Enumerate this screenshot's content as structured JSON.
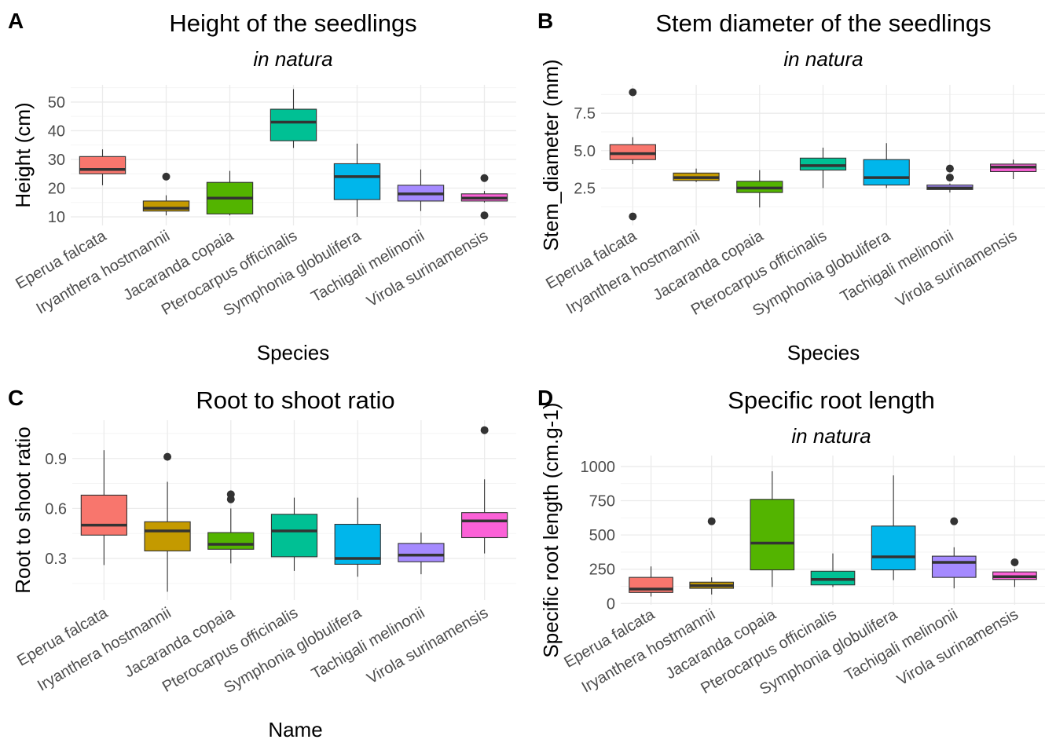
{
  "chart_data": [
    {
      "tag": "A",
      "type": "boxplot",
      "title": "Height of the seedlings",
      "subtitle": "in natura",
      "xlabel": "Species",
      "ylabel": "Height (cm)",
      "ylim": [
        7,
        56
      ],
      "yticks": [
        10,
        20,
        30,
        40,
        50
      ],
      "yticklabels": [
        "10",
        "20",
        "30",
        "40",
        "50"
      ],
      "categories": [
        "Eperua falcata",
        "Iryanthera hostmannii",
        "Jacaranda copaia",
        "Pterocarpus officinalis",
        "Symphonia globulifera",
        "Tachigali melinonii",
        "Virola surinamensis"
      ],
      "boxes": [
        {
          "min": 21,
          "q1": 25,
          "median": 26.5,
          "q3": 31,
          "max": 33.5,
          "outliers": []
        },
        {
          "min": 10.5,
          "q1": 12,
          "median": 13,
          "q3": 15.5,
          "max": 17.5,
          "outliers": [
            24
          ]
        },
        {
          "min": 10.5,
          "q1": 11,
          "median": 16.5,
          "q3": 22,
          "max": 26,
          "outliers": []
        },
        {
          "min": 34,
          "q1": 36.5,
          "median": 43,
          "q3": 47.5,
          "max": 54.5,
          "outliers": []
        },
        {
          "min": 10,
          "q1": 16,
          "median": 24,
          "q3": 28.5,
          "max": 35.5,
          "outliers": []
        },
        {
          "min": 12,
          "q1": 15.5,
          "median": 18,
          "q3": 21,
          "max": 26.5,
          "outliers": []
        },
        {
          "min": 15,
          "q1": 15.5,
          "median": 16.5,
          "q3": 18,
          "max": 19,
          "outliers": [
            23.5,
            10.5
          ]
        }
      ]
    },
    {
      "tag": "B",
      "type": "boxplot",
      "title": "Stem diameter of the seedlings",
      "subtitle": "in natura",
      "xlabel": "Species",
      "ylabel": "Stem_diameter (mm)",
      "ylim": [
        0,
        9.4
      ],
      "yticks": [
        2.5,
        5.0,
        7.5
      ],
      "yticklabels": [
        "2.5",
        "5.0",
        "7.5"
      ],
      "categories": [
        "Eperua falcata",
        "Iryanthera hostmannii",
        "Jacaranda copaia",
        "Pterocarpus officinalis",
        "Symphonia globulifera",
        "Tachigali melinonii",
        "Virola surinamensis"
      ],
      "boxes": [
        {
          "min": 4.1,
          "q1": 4.4,
          "median": 4.8,
          "q3": 5.4,
          "max": 5.9,
          "outliers": [
            8.9,
            0.6
          ]
        },
        {
          "min": 2.9,
          "q1": 3.0,
          "median": 3.2,
          "q3": 3.5,
          "max": 3.8,
          "outliers": []
        },
        {
          "min": 1.2,
          "q1": 2.2,
          "median": 2.5,
          "q3": 2.95,
          "max": 3.7,
          "outliers": []
        },
        {
          "min": 2.5,
          "q1": 3.7,
          "median": 4.0,
          "q3": 4.5,
          "max": 5.2,
          "outliers": []
        },
        {
          "min": 2.5,
          "q1": 2.7,
          "median": 3.2,
          "q3": 4.4,
          "max": 5.5,
          "outliers": []
        },
        {
          "min": 2.2,
          "q1": 2.4,
          "median": 2.5,
          "q3": 2.7,
          "max": 2.8,
          "outliers": [
            3.8,
            3.2
          ]
        },
        {
          "min": 3.1,
          "q1": 3.6,
          "median": 3.9,
          "q3": 4.1,
          "max": 4.4,
          "outliers": []
        }
      ]
    },
    {
      "tag": "C",
      "type": "boxplot",
      "title": "Root to shoot ratio",
      "subtitle": "",
      "xlabel": "Name",
      "ylabel": "Root to shoot ratio",
      "ylim": [
        0.05,
        1.13
      ],
      "yticks": [
        0.3,
        0.6,
        0.9
      ],
      "yticklabels": [
        "0.3",
        "0.6",
        "0.9"
      ],
      "categories": [
        "Eperua falcata",
        "Iryanthera hostmannii",
        "Jacaranda copaia",
        "Pterocarpus officinalis",
        "Symphonia globulifera",
        "Tachigali melinonii",
        "Virola surinamensis"
      ],
      "boxes": [
        {
          "min": 0.26,
          "q1": 0.44,
          "median": 0.5,
          "q3": 0.68,
          "max": 0.95,
          "outliers": []
        },
        {
          "min": 0.1,
          "q1": 0.345,
          "median": 0.465,
          "q3": 0.52,
          "max": 0.76,
          "outliers": [
            0.91
          ]
        },
        {
          "min": 0.27,
          "q1": 0.355,
          "median": 0.385,
          "q3": 0.455,
          "max": 0.6,
          "outliers": [
            0.685,
            0.655
          ]
        },
        {
          "min": 0.225,
          "q1": 0.31,
          "median": 0.465,
          "q3": 0.565,
          "max": 0.665,
          "outliers": []
        },
        {
          "min": 0.19,
          "q1": 0.265,
          "median": 0.3,
          "q3": 0.505,
          "max": 0.665,
          "outliers": []
        },
        {
          "min": 0.205,
          "q1": 0.28,
          "median": 0.32,
          "q3": 0.39,
          "max": 0.455,
          "outliers": []
        },
        {
          "min": 0.33,
          "q1": 0.425,
          "median": 0.525,
          "q3": 0.575,
          "max": 0.775,
          "outliers": [
            1.07
          ]
        }
      ]
    },
    {
      "tag": "D",
      "type": "boxplot",
      "title": "Specific root length",
      "subtitle": "in natura",
      "xlabel": "",
      "ylabel": "Specific root length (cm.g-1)",
      "ylim": [
        -10,
        1080
      ],
      "yticks": [
        0,
        250,
        500,
        750,
        1000
      ],
      "yticklabels": [
        "0",
        "250",
        "500",
        "750",
        "1000"
      ],
      "categories": [
        "Eperua falcata",
        "Iryanthera hostmannii",
        "Jacaranda copaia",
        "Pterocarpus officinalis",
        "Symphonia globulifera",
        "Tachigali melinonii",
        "Virola surinamensis"
      ],
      "boxes": [
        {
          "min": 50,
          "q1": 80,
          "median": 105,
          "q3": 190,
          "max": 270,
          "outliers": []
        },
        {
          "min": 65,
          "q1": 110,
          "median": 130,
          "q3": 155,
          "max": 190,
          "outliers": [
            600
          ]
        },
        {
          "min": 120,
          "q1": 245,
          "median": 440,
          "q3": 760,
          "max": 965,
          "outliers": []
        },
        {
          "min": 120,
          "q1": 135,
          "median": 175,
          "q3": 235,
          "max": 365,
          "outliers": []
        },
        {
          "min": 170,
          "q1": 245,
          "median": 340,
          "q3": 565,
          "max": 935,
          "outliers": []
        },
        {
          "min": 110,
          "q1": 190,
          "median": 300,
          "q3": 345,
          "max": 410,
          "outliers": [
            600
          ]
        },
        {
          "min": 120,
          "q1": 175,
          "median": 195,
          "q3": 230,
          "max": 250,
          "outliers": [
            300
          ]
        }
      ]
    }
  ],
  "palette": [
    "#F8766D",
    "#C49A00",
    "#53B400",
    "#00C094",
    "#00B6EB",
    "#A58AFF",
    "#FB61D7"
  ],
  "grid": true,
  "legend": "none"
}
